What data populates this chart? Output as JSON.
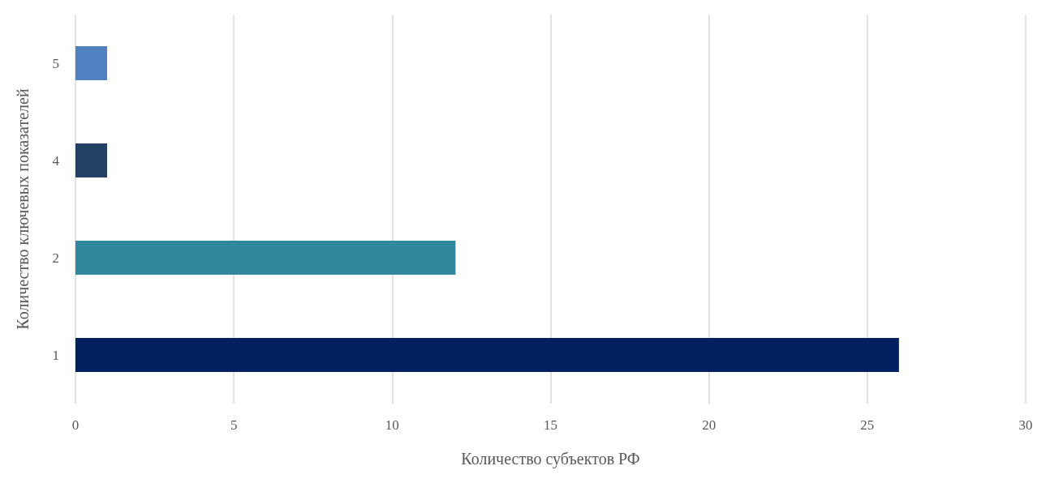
{
  "chart_data": {
    "type": "bar",
    "orientation": "horizontal",
    "xlabel": "Количество субъектов РФ",
    "ylabel": "Количество ключевых показателей",
    "categories": [
      "5",
      "4",
      "2",
      "1"
    ],
    "values": [
      1,
      1,
      12,
      26
    ],
    "colors": [
      "#4f81c1",
      "#233f63",
      "#31879c",
      "#022060"
    ],
    "xlim": [
      0,
      30
    ],
    "xticks": [
      0,
      5,
      10,
      15,
      20,
      25,
      30
    ],
    "grid": "x"
  }
}
